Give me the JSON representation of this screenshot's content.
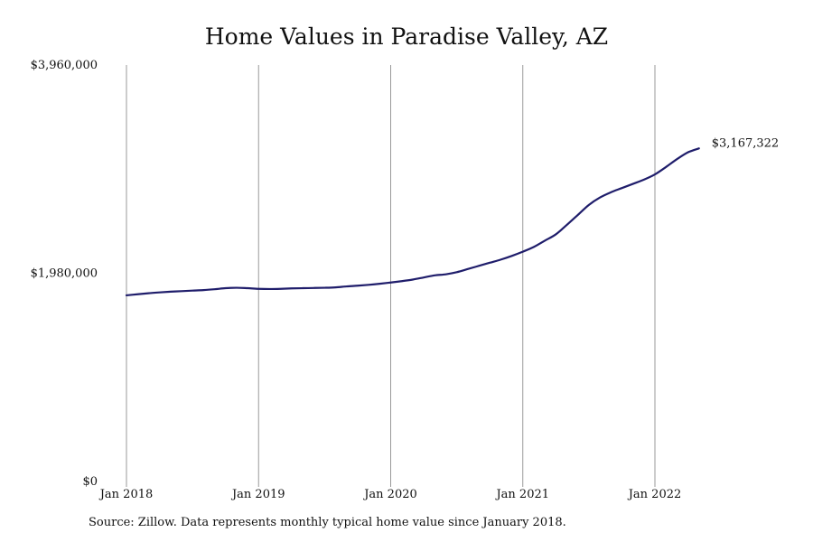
{
  "chart_data": {
    "type": "line",
    "title": "Home Values in Paradise Valley, AZ",
    "xlabel": "",
    "ylabel": "",
    "x_ticks": [
      "Jan 2018",
      "Jan 2019",
      "Jan 2020",
      "Jan 2021",
      "Jan 2022"
    ],
    "y_ticks": [
      "$0",
      "$1,980,000",
      "$3,960,000"
    ],
    "y_tick_values": [
      0,
      1980000,
      3960000
    ],
    "ylim": [
      0,
      3960000
    ],
    "xlim_months": [
      0,
      52
    ],
    "grid": "vertical",
    "line_color": "#1f1d6b",
    "end_label": "$3,167,322",
    "series": [
      {
        "values": [
          1770000,
          1780000,
          1790000,
          1798000,
          1805000,
          1810000,
          1815000,
          1820000,
          1828000,
          1838000,
          1842000,
          1838000,
          1832000,
          1830000,
          1832000,
          1836000,
          1838000,
          1840000,
          1842000,
          1846000,
          1855000,
          1862000,
          1870000,
          1880000,
          1892000,
          1905000,
          1920000,
          1940000,
          1960000,
          1970000,
          1990000,
          2020000,
          2050000,
          2080000,
          2110000,
          2145000,
          2185000,
          2230000,
          2290000,
          2350000,
          2440000,
          2535000,
          2630000,
          2700000,
          2750000,
          2790000,
          2830000,
          2870000,
          2920000,
          2990000,
          3065000,
          3130000,
          3167322
        ]
      }
    ]
  },
  "footer": {
    "source": "Source: Zillow. Data represents monthly typical home value since January 2018."
  }
}
